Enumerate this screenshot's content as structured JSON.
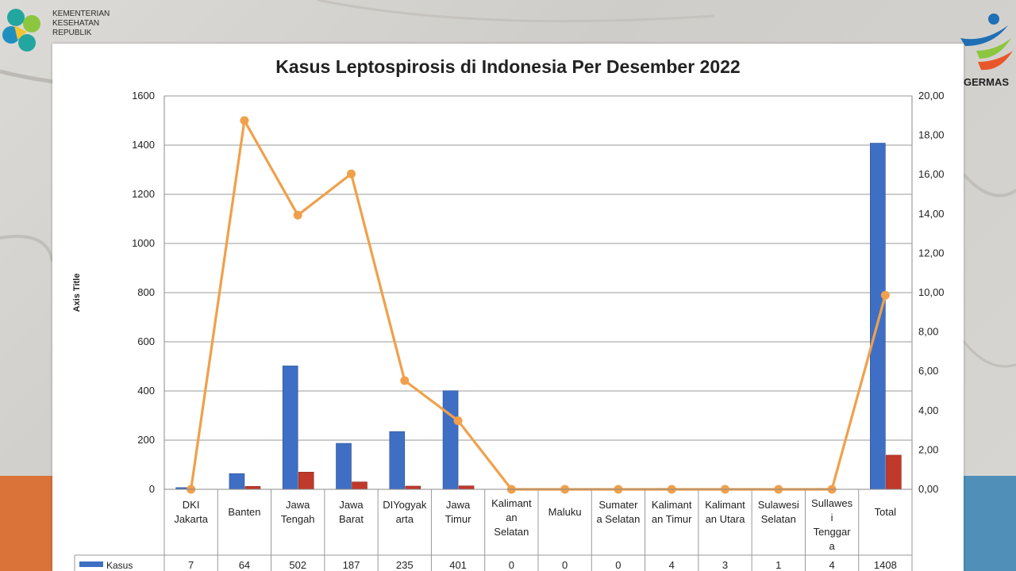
{
  "header": {
    "ministry_lines": [
      "KEMENTERIAN",
      "KESEHATAN",
      "REPUBLIK"
    ],
    "germas_text": "GERMAS"
  },
  "colors": {
    "kasus_bar": "#3f6fc4",
    "second_bar": "#c0392b",
    "line": "#f0a04b",
    "grid": "#9a9a9a"
  },
  "chart_data": {
    "type": "bar",
    "title": "Kasus Leptospirosis di Indonesia Per Desember 2022",
    "ylabel": "Axis Title",
    "ylim": [
      0,
      1600
    ],
    "yticks": [
      "0",
      "200",
      "400",
      "600",
      "800",
      "1000",
      "1200",
      "1400",
      "1600"
    ],
    "y2lim": [
      0,
      20
    ],
    "y2ticks": [
      "0,00",
      "2,00",
      "4,00",
      "6,00",
      "8,00",
      "10,00",
      "12,00",
      "14,00",
      "16,00",
      "18,00",
      "20,00"
    ],
    "grid": true,
    "categories": [
      [
        "DKI",
        "Jakarta"
      ],
      [
        "Banten"
      ],
      [
        "Jawa",
        "Tengah"
      ],
      [
        "Jawa",
        "Barat"
      ],
      [
        "DIYogyak",
        "arta"
      ],
      [
        "Jawa",
        "Timur"
      ],
      [
        "Kalimant",
        "an",
        "Selatan"
      ],
      [
        "Maluku"
      ],
      [
        "Sumater",
        "a Selatan"
      ],
      [
        "Kalimant",
        "an Timur"
      ],
      [
        "Kalimant",
        "an Utara"
      ],
      [
        "Sulawesi",
        "Selatan"
      ],
      [
        "Sullawes",
        "i",
        "Tenggar",
        "a"
      ],
      [
        "Total"
      ]
    ],
    "series": [
      {
        "name": "Kasus",
        "type": "bar",
        "axis": "left",
        "values": [
          7,
          64,
          502,
          187,
          235,
          401,
          0,
          0,
          0,
          4,
          3,
          1,
          4,
          1408
        ]
      },
      {
        "type": "bar",
        "axis": "left",
        "values": [
          0,
          12,
          70,
          30,
          13,
          14,
          0,
          0,
          0,
          0,
          0,
          0,
          0,
          139
        ]
      },
      {
        "type": "line",
        "axis": "right",
        "values": [
          0.0,
          18.75,
          13.94,
          16.04,
          5.53,
          3.49,
          0.0,
          0.0,
          0.0,
          0.0,
          0.0,
          0.0,
          0.0,
          9.87
        ]
      }
    ],
    "table": {
      "row_label": "Kasus",
      "values": [
        "7",
        "64",
        "502",
        "187",
        "235",
        "401",
        "0",
        "0",
        "0",
        "4",
        "3",
        "1",
        "4",
        "1408"
      ]
    }
  }
}
